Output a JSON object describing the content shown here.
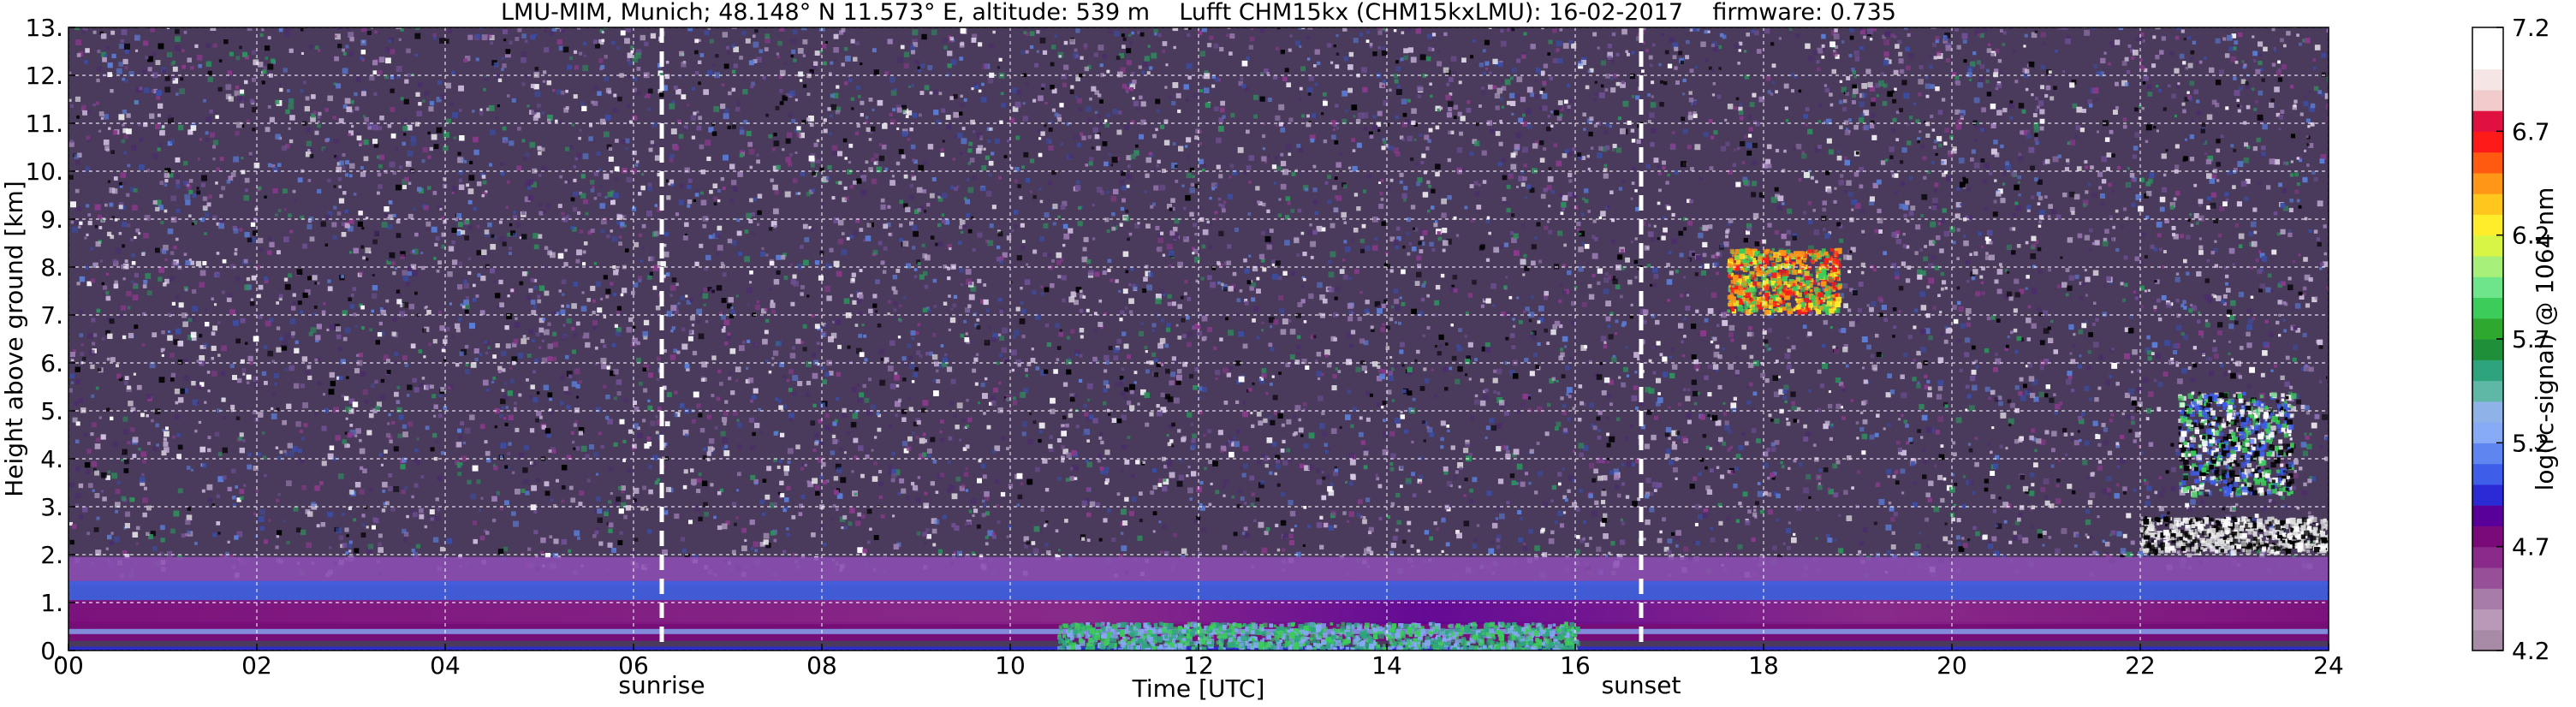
{
  "chart_data": {
    "type": "heatmap",
    "title": "LMU-MIM, Munich; 48.148° N 11.573° E, altitude: 539 m    Lufft CHM15kx (CHM15kxLMU): 16-02-2017    firmware: 0.735",
    "xlabel": "Time [UTC]",
    "ylabel": "Height above ground [km]",
    "xlim": [
      0,
      24
    ],
    "ylim": [
      0,
      13
    ],
    "x_ticks": [
      "00",
      "02",
      "04",
      "06",
      "08",
      "10",
      "12",
      "14",
      "16",
      "18",
      "20",
      "22",
      "24"
    ],
    "y_ticks": [
      "0.",
      "1.",
      "2.",
      "3.",
      "4.",
      "5.",
      "6.",
      "7.",
      "8.",
      "9.",
      "10.",
      "11.",
      "12.",
      "13."
    ],
    "grid": true,
    "annotations": [
      {
        "label": "sunrise",
        "x": 6.3
      },
      {
        "label": "sunset",
        "x": 16.7
      }
    ],
    "colorbar": {
      "label": "log(rc-signal) @ 1064 nm",
      "range": [
        4.2,
        7.2
      ],
      "ticks": [
        "4.2",
        "4.7",
        "5.2",
        "5.7",
        "6.2",
        "6.7",
        "7.2"
      ],
      "colors": [
        "#a68aa6",
        "#b89ab8",
        "#a77ba7",
        "#974f97",
        "#8a2a8a",
        "#7a0a7a",
        "#5a009a",
        "#2b2bd6",
        "#3e5eea",
        "#5f86f0",
        "#86aaf5",
        "#8fb3e8",
        "#5fb8a6",
        "#2ea47e",
        "#1f8f3a",
        "#2fa82f",
        "#3ccc5a",
        "#6ee58a",
        "#a6f07a",
        "#d8f545",
        "#ffec2a",
        "#ffc61e",
        "#ff9618",
        "#ff5a10",
        "#ff1a1a",
        "#e01040",
        "#f2cccc",
        "#f6e5e5",
        "#ffffff",
        "#ffffff"
      ]
    },
    "layers": {
      "noise_colors": [
        "#ffffff",
        "#000000",
        "#4a2d6a",
        "#6f4f93",
        "#3b4da3",
        "#5a7dd6",
        "#9b7bb3",
        "#c7b3d6",
        "#2e8f5c",
        "#8a3a8a",
        "#d6c7e3"
      ],
      "background": "#4a3a5c",
      "boundary_layer": [
        {
          "name": "top diffuse",
          "h0": 1.35,
          "h1": 1.95,
          "color": "#8b4fb0"
        },
        {
          "name": "blue band",
          "h0": 1.0,
          "h1": 1.45,
          "color": "#3f5fe0"
        },
        {
          "name": "magenta band",
          "h0": 0.55,
          "h1": 1.05,
          "color": "#8a2a8a"
        },
        {
          "name": "lower band",
          "h0": 0.2,
          "h1": 0.6,
          "color": "#7a0a7a"
        }
      ],
      "features": [
        {
          "name": "cirrus",
          "x": [
            17.6,
            18.8
          ],
          "y": [
            7.1,
            8.4
          ],
          "colors": [
            "#ff9618",
            "#3ccc5a",
            "#ffec2a",
            "#ff1a1a"
          ]
        },
        {
          "name": "midlevel cloud",
          "x": [
            22.4,
            23.6
          ],
          "y": [
            3.3,
            5.4
          ],
          "colors": [
            "#ffffff",
            "#3e5eea",
            "#3ccc5a",
            "#000000"
          ]
        },
        {
          "name": "low cloud",
          "x": [
            22.0,
            24.0
          ],
          "y": [
            2.1,
            2.8
          ],
          "colors": [
            "#ffffff",
            "#000000",
            "#e0e0e0"
          ]
        },
        {
          "name": "green surface layer",
          "x": [
            10.5,
            16.0
          ],
          "y": [
            0.05,
            0.6
          ],
          "colors": [
            "#2ea47e",
            "#3ccc5a",
            "#86aaf5"
          ]
        }
      ]
    }
  }
}
